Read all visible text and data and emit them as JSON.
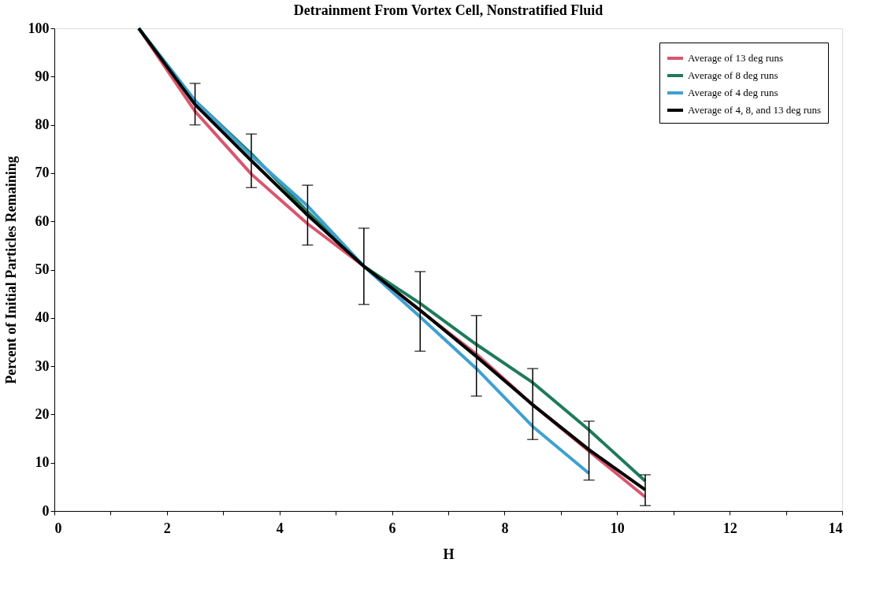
{
  "chart_data": {
    "type": "line",
    "title": "Detrainment From Vortex Cell, Nonstratified Fluid",
    "xlabel": "H",
    "ylabel": "Percent of Initial Particles Remaining",
    "x": [
      1.5,
      2.5,
      3.5,
      4.5,
      5.5,
      6.5,
      7.5,
      8.5,
      9.5,
      10.5
    ],
    "series": [
      {
        "name": "Average of 13 deg runs",
        "color": "#d9566e",
        "values": [
          100,
          82.8,
          69.8,
          59.5,
          50.7,
          41.5,
          32.5,
          22,
          12.4,
          2.9
        ]
      },
      {
        "name": "Average of 8 deg runs",
        "color": "#1f7a5c",
        "values": [
          100,
          85,
          74,
          62,
          50.7,
          43,
          34.5,
          26.6,
          16.8,
          6.2
        ]
      },
      {
        "name": "Average of 4 deg runs",
        "color": "#3fa0d0",
        "values": [
          100,
          85,
          73.6,
          63.2,
          50.7,
          40.2,
          29.5,
          17.5,
          7.8,
          null
        ]
      },
      {
        "name": "Average of 4, 8, and 13 deg runs",
        "color": "#000000",
        "values": [
          100,
          84.2,
          72.6,
          61.3,
          50.7,
          41.6,
          32,
          22,
          12.7,
          4.4
        ],
        "errors": [
          null,
          [
            80,
            88.6
          ],
          [
            67,
            78.1
          ],
          [
            55.1,
            67.5
          ],
          [
            42.8,
            58.6
          ],
          [
            33.1,
            49.6
          ],
          [
            23.8,
            40.5
          ],
          [
            14.8,
            29.5
          ],
          [
            6.4,
            18.6
          ],
          [
            1.1,
            7.5
          ]
        ]
      }
    ],
    "xlim": [
      0,
      14
    ],
    "ylim": [
      0,
      100
    ],
    "xticks": [
      0,
      {
        "value": 1,
        "label": null
      },
      2,
      {
        "value": 3,
        "label": null
      },
      4,
      {
        "value": 5,
        "label": null
      },
      6,
      {
        "value": 7,
        "label": null
      },
      8,
      {
        "value": 9,
        "label": null
      },
      10,
      {
        "value": 11,
        "label": null
      },
      12,
      {
        "value": 13,
        "label": null
      },
      14
    ],
    "yticks": [
      0,
      10,
      20,
      30,
      40,
      50,
      60,
      70,
      80,
      90,
      100
    ],
    "legend": "top right",
    "grid": false,
    "marker": "none",
    "line_style": "solid"
  }
}
